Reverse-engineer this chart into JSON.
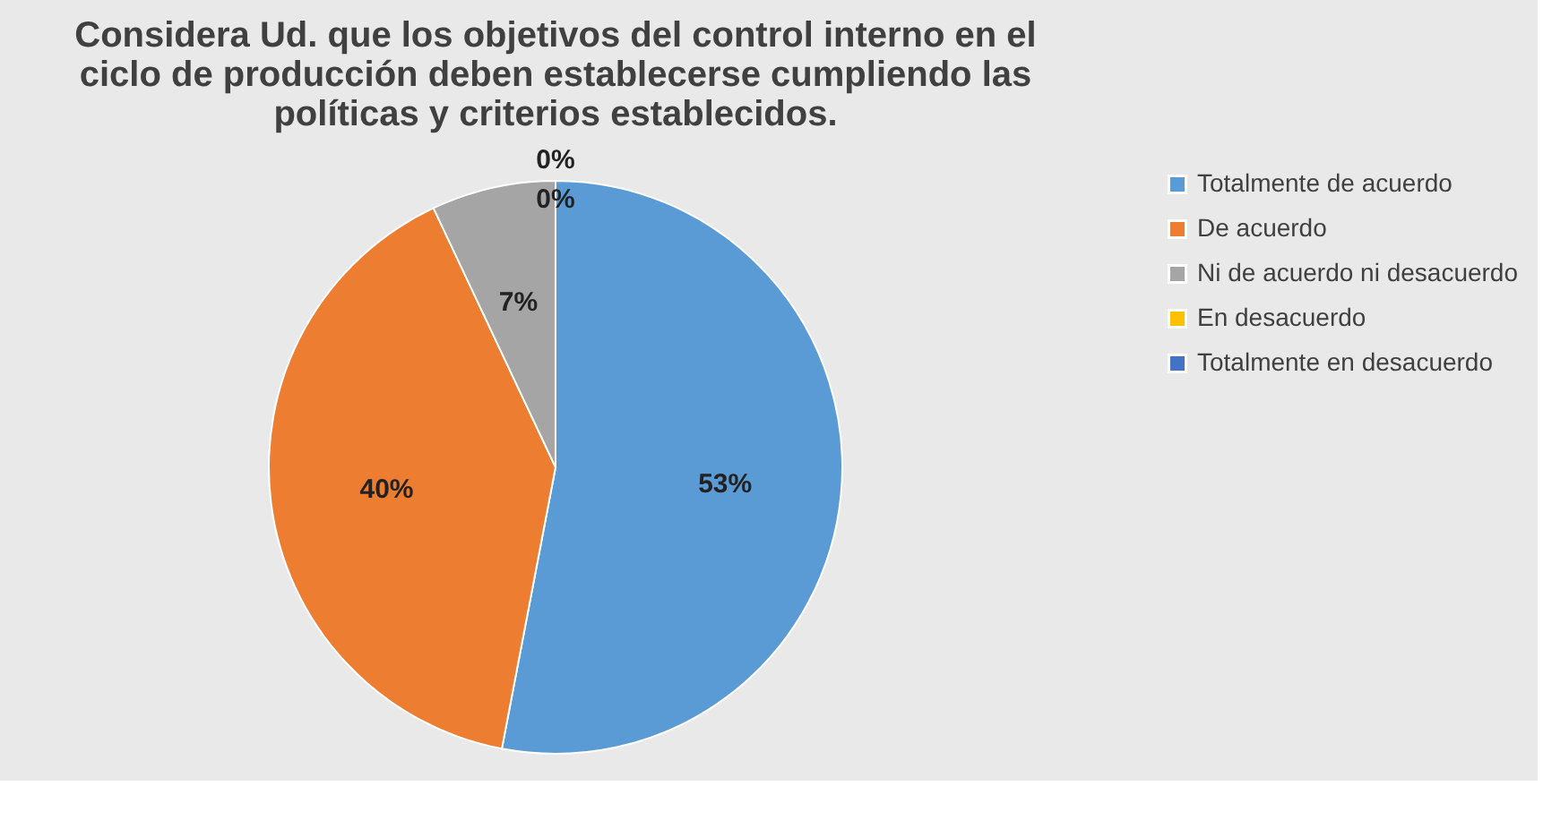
{
  "chart_data": {
    "type": "pie",
    "title": [
      "Considera Ud. que los objetivos del control interno en el",
      "ciclo de producción deben establecerse cumpliendo las",
      "políticas y criterios establecidos."
    ],
    "categories": [
      "Totalmente de acuerdo",
      "De acuerdo",
      "Ni de acuerdo ni desacuerdo",
      "En desacuerdo",
      "Totalmente en desacuerdo"
    ],
    "values": [
      53,
      40,
      7,
      0,
      0
    ],
    "colors": [
      "#5b9bd5",
      "#ed7d31",
      "#a5a5a5",
      "#ffc000",
      "#4472c4"
    ],
    "value_labels": [
      "53%",
      "40%",
      "7%",
      "0%",
      "0%"
    ],
    "legend": "right"
  }
}
